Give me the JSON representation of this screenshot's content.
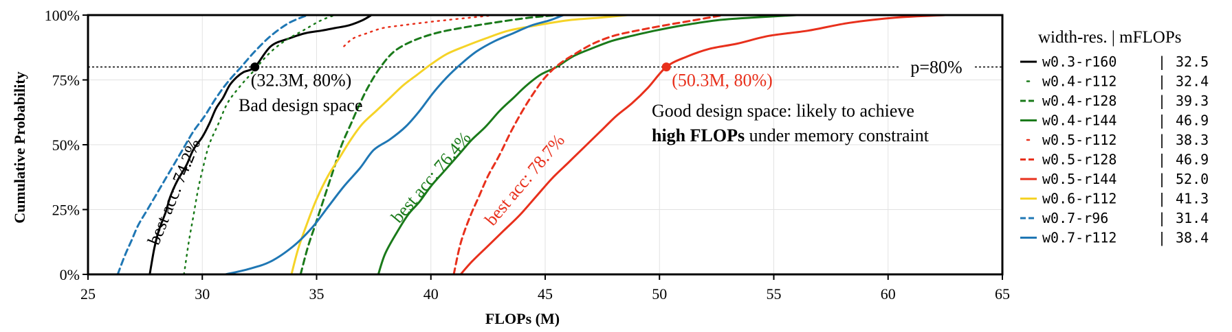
{
  "chart_data": {
    "type": "line",
    "xlabel": "FLOPs (M)",
    "ylabel": "Cumulative Probability",
    "xlim": [
      25,
      65
    ],
    "ylim": [
      0,
      100
    ],
    "xticks": [
      "25",
      "30",
      "35",
      "40",
      "45",
      "50",
      "55",
      "60",
      "65"
    ],
    "yticks": [
      "0%",
      "25%",
      "50%",
      "75%",
      "100%"
    ],
    "grid": true,
    "legend": {
      "placement": "right",
      "title": "width-res. | mFLOPs",
      "entries": [
        {
          "name": "w0.3-r160",
          "value": "32.5",
          "color": "#000000",
          "dash": "solid"
        },
        {
          "name": "w0.4-r112",
          "value": "32.4",
          "color": "#1a7a1a",
          "dash": "dotted"
        },
        {
          "name": "w0.4-r128",
          "value": "39.3",
          "color": "#1a7a1a",
          "dash": "dashed"
        },
        {
          "name": "w0.4-r144",
          "value": "46.9",
          "color": "#1a7a1a",
          "dash": "solid"
        },
        {
          "name": "w0.5-r112",
          "value": "38.3",
          "color": "#e8301c",
          "dash": "dotted"
        },
        {
          "name": "w0.5-r128",
          "value": "46.9",
          "color": "#e8301c",
          "dash": "dashed"
        },
        {
          "name": "w0.5-r144",
          "value": "52.0",
          "color": "#e8301c",
          "dash": "solid"
        },
        {
          "name": "w0.6-r112",
          "value": "41.3",
          "color": "#f5d327",
          "dash": "solid"
        },
        {
          "name": "w0.7-r96",
          "value": "31.4",
          "color": "#1f77b4",
          "dash": "dashed"
        },
        {
          "name": "w0.7-r112",
          "value": "38.4",
          "color": "#1f77b4",
          "dash": "solid"
        }
      ]
    },
    "reference_line": {
      "y": 80,
      "label": "p=80%"
    },
    "markers": [
      {
        "x": 32.3,
        "y": 80,
        "label": "(32.3M, 80%)",
        "color": "#000000"
      },
      {
        "x": 50.3,
        "y": 80,
        "label": "(50.3M, 80%)",
        "color": "#e8301c"
      }
    ],
    "annotations": [
      {
        "text": "Bad design space",
        "color": "#000000"
      },
      {
        "text_prefix": "Good design space: likely to achieve",
        "text_bold": "high FLOPs",
        "text_suffix": "under memory constraint",
        "color": "#000000"
      },
      {
        "text": "best acc: 74.2%",
        "color": "#000000",
        "x": 29.0,
        "y": 31,
        "angle": -68
      },
      {
        "text": "best acc: 76.4%",
        "color": "#1a7a1a",
        "x": 40.2,
        "y": 36,
        "angle": -50
      },
      {
        "text": "best acc: 78.7%",
        "color": "#e8301c",
        "x": 44.3,
        "y": 35,
        "angle": -50
      }
    ],
    "series": [
      {
        "name": "w0.3-r160",
        "color": "#000000",
        "dash": "solid",
        "x": [
          27.7,
          27.9,
          28.1,
          28.4,
          28.6,
          28.9,
          29.3,
          29.6,
          30.0,
          30.3,
          30.6,
          30.9,
          31.2,
          31.5,
          31.8,
          32.3,
          33.0,
          33.8,
          34.5,
          35.2,
          35.8,
          36.4,
          37.0,
          37.4
        ],
        "y": [
          0,
          10,
          17,
          24,
          30,
          36,
          42,
          48,
          53,
          58,
          64,
          68,
          73,
          76,
          78,
          80,
          88,
          91,
          93,
          94,
          95,
          96,
          98,
          100
        ]
      },
      {
        "name": "w0.4-r112",
        "color": "#1a7a1a",
        "dash": "dotted",
        "x": [
          29.2,
          29.4,
          29.6,
          29.8,
          30.0,
          30.3,
          30.7,
          31.1,
          31.6,
          32.2,
          32.9,
          33.6,
          34.4,
          35.2,
          35.8
        ],
        "y": [
          0,
          12,
          22,
          32,
          40,
          50,
          58,
          66,
          72,
          78,
          85,
          90,
          94,
          98,
          100
        ]
      },
      {
        "name": "w0.4-r128",
        "color": "#1a7a1a",
        "dash": "dashed",
        "x": [
          34.3,
          34.6,
          34.9,
          35.2,
          35.5,
          35.8,
          36.1,
          36.5,
          36.9,
          37.3,
          37.8,
          38.4,
          39.2,
          40.2,
          41.3,
          42.7,
          44.3,
          45.6
        ],
        "y": [
          0,
          10,
          18,
          26,
          34,
          42,
          50,
          58,
          66,
          73,
          80,
          86,
          90,
          93,
          95,
          97,
          99,
          100
        ]
      },
      {
        "name": "w0.4-r144",
        "color": "#1a7a1a",
        "dash": "solid",
        "x": [
          37.7,
          38.0,
          38.5,
          39.0,
          39.5,
          40.0,
          40.6,
          41.2,
          41.8,
          42.4,
          43.0,
          43.6,
          44.2,
          44.8,
          45.5,
          46.2,
          47.0,
          47.9,
          48.8,
          49.8,
          51.0,
          52.5,
          54.0,
          56.0
        ],
        "y": [
          0,
          8,
          16,
          23,
          28,
          34,
          40,
          46,
          52,
          57,
          63,
          68,
          73,
          77,
          80,
          84,
          87,
          90,
          92,
          94,
          96,
          98,
          99,
          100
        ]
      },
      {
        "name": "w0.5-r112",
        "color": "#e8301c",
        "dash": "dotted",
        "x": [
          36.2,
          36.6,
          37.2,
          37.9,
          38.7,
          39.6,
          40.6,
          41.7,
          42.8
        ],
        "y": [
          88,
          91,
          93,
          95,
          96,
          97,
          98,
          99,
          100
        ]
      },
      {
        "name": "w0.5-r128",
        "color": "#e8301c",
        "dash": "dashed",
        "x": [
          41.0,
          41.3,
          41.7,
          42.1,
          42.5,
          43.0,
          43.5,
          44.0,
          44.5,
          45.0,
          45.6,
          46.3,
          47.1,
          48.0,
          49.0,
          50.2,
          51.5,
          52.8
        ],
        "y": [
          0,
          12,
          22,
          30,
          38,
          46,
          55,
          63,
          70,
          76,
          81,
          85,
          89,
          92,
          94,
          96,
          98,
          100
        ]
      },
      {
        "name": "w0.5-r144",
        "color": "#e8301c",
        "dash": "solid",
        "x": [
          41.3,
          41.8,
          42.5,
          43.2,
          43.9,
          44.6,
          45.3,
          46.0,
          46.7,
          47.4,
          48.1,
          48.8,
          49.5,
          50.3,
          51.2,
          52.2,
          53.4,
          54.8,
          56.5,
          58.3,
          60.3,
          62.5
        ],
        "y": [
          0,
          5,
          11,
          17,
          23,
          30,
          37,
          43,
          49,
          55,
          61,
          66,
          72,
          80,
          84,
          87,
          89,
          92,
          94,
          97,
          99,
          100
        ]
      },
      {
        "name": "w0.6-r112",
        "color": "#f5d327",
        "dash": "solid",
        "x": [
          33.9,
          34.2,
          34.6,
          35.0,
          35.5,
          36.0,
          36.5,
          37.0,
          37.6,
          38.2,
          38.8,
          39.4,
          40.0,
          40.7,
          41.5,
          42.4,
          43.4,
          44.6,
          46.0,
          47.4,
          48.6
        ],
        "y": [
          0,
          10,
          20,
          29,
          38,
          45,
          52,
          58,
          63,
          68,
          73,
          77,
          81,
          85,
          88,
          91,
          94,
          96,
          98,
          99,
          100
        ]
      },
      {
        "name": "w0.7-r96",
        "color": "#1f77b4",
        "dash": "dashed",
        "x": [
          26.3,
          26.6,
          26.9,
          27.2,
          27.6,
          28.0,
          28.4,
          28.8,
          29.2,
          29.6,
          30.1,
          30.6,
          31.1,
          31.7,
          32.3,
          33.0,
          33.8,
          34.6
        ],
        "y": [
          0,
          7,
          13,
          19,
          25,
          31,
          37,
          43,
          49,
          55,
          61,
          68,
          74,
          80,
          86,
          92,
          97,
          100
        ]
      },
      {
        "name": "w0.7-r112",
        "color": "#1f77b4",
        "dash": "solid",
        "x": [
          31.0,
          32.0,
          33.0,
          34.0,
          34.8,
          35.5,
          36.2,
          36.9,
          37.5,
          38.2,
          38.9,
          39.5,
          40.1,
          40.7,
          41.3,
          42.0,
          42.8,
          43.6,
          44.4,
          45.2,
          45.8
        ],
        "y": [
          0,
          2,
          5,
          11,
          18,
          26,
          34,
          41,
          48,
          52,
          57,
          63,
          70,
          76,
          81,
          86,
          90,
          93,
          96,
          98,
          100
        ]
      }
    ]
  }
}
